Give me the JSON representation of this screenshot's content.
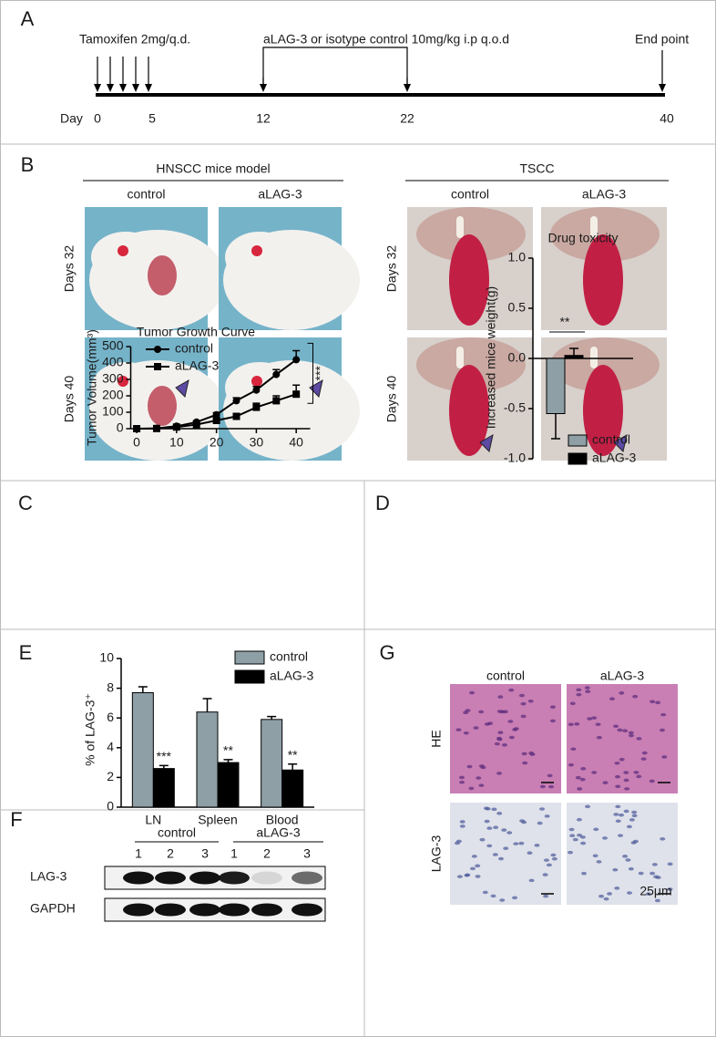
{
  "panel_labels": [
    "A",
    "B",
    "C",
    "D",
    "E",
    "F",
    "G"
  ],
  "timeline": {
    "tamoxifen": "Tamoxifen 2mg/q.d.",
    "treatment": "aLAG-3 or isotype control 10mg/kg  i.p q.o.d",
    "end": "End point",
    "day_label": "Day",
    "days": [
      0,
      5,
      12,
      22,
      40
    ]
  },
  "mice_photos": {
    "groups": [
      {
        "title": "HNSCC mice model",
        "columns": [
          "control",
          "aLAG-3"
        ],
        "rows": [
          "Days 32",
          "Days 40"
        ]
      },
      {
        "title": "TSCC",
        "columns": [
          "control",
          "aLAG-3"
        ],
        "rows": [
          "Days 32",
          "Days 40"
        ]
      }
    ]
  },
  "chart_data": [
    {
      "type": "line",
      "title": "Tumor Growth Curve",
      "y_label": "Tumor Volume(mm³)",
      "x": [
        0,
        5,
        10,
        15,
        20,
        25,
        30,
        35,
        40
      ],
      "series": [
        {
          "name": "control",
          "color": "#000000",
          "marker": "circle",
          "values": [
            0,
            2,
            15,
            40,
            85,
            170,
            235,
            330,
            420
          ],
          "errors": [
            0,
            0,
            5,
            8,
            12,
            18,
            22,
            30,
            55
          ]
        },
        {
          "name": "aLAG-3",
          "color": "#000000",
          "marker": "square",
          "values": [
            0,
            1,
            10,
            25,
            50,
            75,
            130,
            170,
            210
          ],
          "errors": [
            0,
            0,
            4,
            6,
            10,
            12,
            25,
            30,
            55
          ]
        }
      ],
      "xlim": [
        -1.5,
        43.5
      ],
      "xticks": [
        0,
        10,
        20,
        30,
        40
      ],
      "ylim": [
        0,
        500
      ],
      "yticks": [
        0,
        100,
        200,
        300,
        400,
        500
      ],
      "significance": "***"
    },
    {
      "type": "bar",
      "title": "Drug toxicity",
      "y_label": "Increased mice weight(g)",
      "categories": [
        null
      ],
      "series": [
        {
          "name": "control",
          "color": "#8e9fa6",
          "values": [
            -0.55
          ],
          "errors": [
            0.25
          ]
        },
        {
          "name": "aLAG-3",
          "color": "#000000",
          "values": [
            0.03
          ],
          "errors": [
            0.07
          ]
        }
      ],
      "ylim": [
        -1,
        1
      ],
      "yticks": [
        {
          "value": -1,
          "label": "-1.0"
        },
        -0.5,
        {
          "value": 0,
          "label": "0.0"
        },
        0.5,
        {
          "value": 1,
          "label": "1.0"
        }
      ],
      "significance": "**"
    },
    {
      "type": "bar",
      "y_label": "% of LAG-3⁺",
      "categories": [
        "LN",
        "Spleen",
        "Blood"
      ],
      "series": [
        {
          "name": "control",
          "color": "#8e9fa6",
          "values": [
            7.7,
            6.4,
            5.9
          ],
          "errors": [
            0.4,
            0.9,
            0.2
          ]
        },
        {
          "name": "aLAG-3",
          "color": "#000000",
          "values": [
            2.6,
            3.0,
            2.5
          ],
          "errors": [
            0.2,
            0.2,
            0.4
          ]
        }
      ],
      "ylim": [
        0,
        10
      ],
      "yticks": [
        0,
        2,
        4,
        6,
        8,
        10
      ],
      "significance": [
        "***",
        "**",
        "**"
      ]
    }
  ],
  "western_blot": {
    "groups": [
      {
        "name": "control",
        "lanes": [
          1,
          2,
          3
        ]
      },
      {
        "name": "aLAG-3",
        "lanes": [
          1,
          2,
          3
        ]
      }
    ],
    "rows": [
      "LAG-3",
      "GAPDH"
    ]
  },
  "histology": {
    "columns": [
      "control",
      "aLAG-3"
    ],
    "rows": [
      "HE",
      "LAG-3"
    ],
    "scale": "25μm"
  }
}
